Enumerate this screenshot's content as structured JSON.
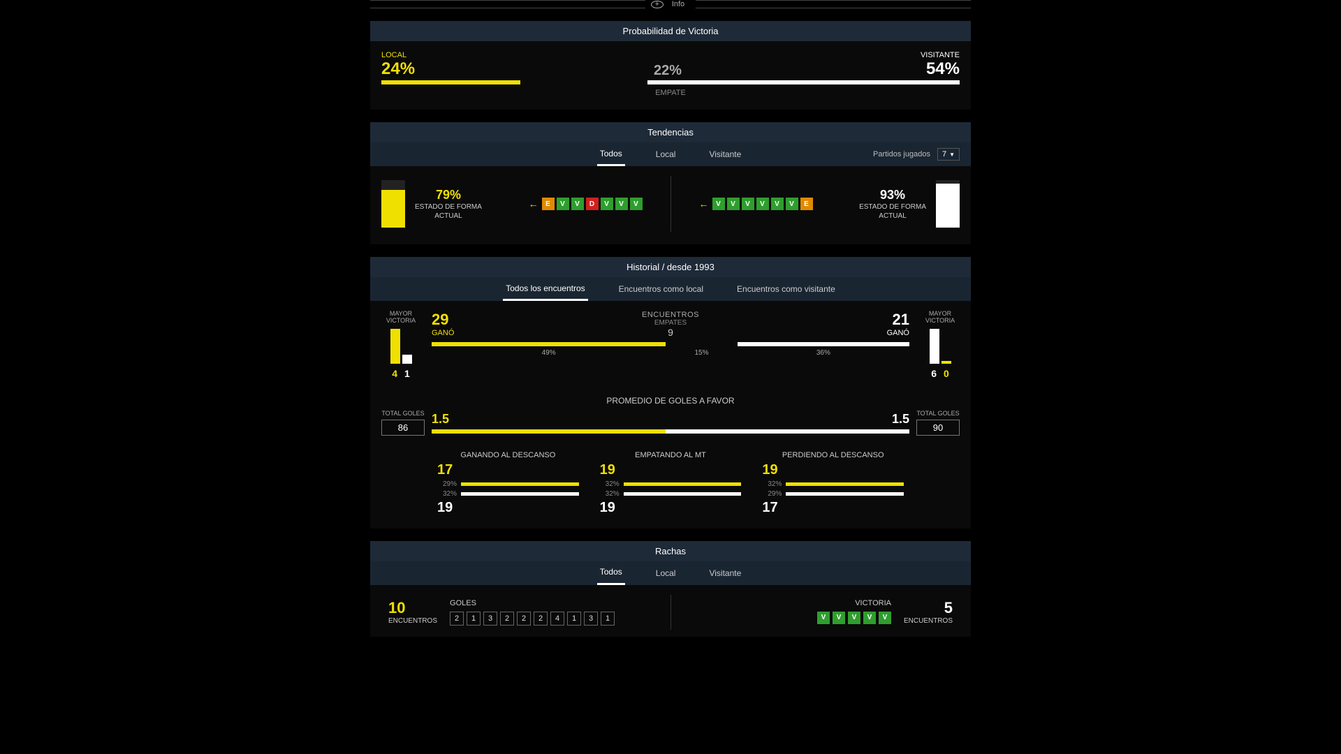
{
  "colors": {
    "accent_yellow": "#f0e000",
    "accent_white": "#ffffff",
    "win": "#2e9e2e",
    "draw": "#e08a00",
    "loss": "#d02020",
    "header_bg": "#1e2a38",
    "tabs_bg": "#1a2532"
  },
  "info_label": "Info",
  "winprob": {
    "title": "Probabilidad de Victoria",
    "local_label": "LOCAL",
    "visit_label": "VISITANTE",
    "draw_label": "EMPATE",
    "local_pct": "24%",
    "draw_pct": "22%",
    "visit_pct": "54%",
    "local_val": 24,
    "draw_val": 22,
    "visit_val": 54
  },
  "tend": {
    "title": "Tendencias",
    "tabs": [
      "Todos",
      "Local",
      "Visitante"
    ],
    "active_tab": 0,
    "games_label": "Partidos jugados",
    "games_value": "7",
    "left": {
      "pct": "79%",
      "pct_val": 79,
      "sub1": "ESTADO DE FORMA",
      "sub2": "ACTUAL",
      "streak": [
        "E",
        "V",
        "V",
        "D",
        "V",
        "V",
        "V"
      ]
    },
    "right": {
      "pct": "93%",
      "pct_val": 93,
      "sub1": "ESTADO DE FORMA",
      "sub2": "ACTUAL",
      "streak": [
        "V",
        "V",
        "V",
        "V",
        "V",
        "V",
        "E"
      ]
    }
  },
  "hist": {
    "title": "Historial / desde 1993",
    "tabs": [
      "Todos los encuentros",
      "Encuentros como local",
      "Encuentros como visitante"
    ],
    "active_tab": 0,
    "mayor_label": "MAYOR VICTORIA",
    "mayor_left": {
      "a": 4,
      "b": 1
    },
    "mayor_right": {
      "a": 6,
      "b": 0
    },
    "enc_label": "ENCUENTROS",
    "draws_label": "EMPATES",
    "draws_val": "9",
    "left_wins": "29",
    "right_wins": "21",
    "won_label": "GANÓ",
    "left_pct": "49",
    "draw_pct": "15",
    "right_pct": "36",
    "left_pct_v": 49,
    "draw_pct_v": 15,
    "right_pct_v": 36,
    "goals_title": "PROMEDIO DE GOLES A FAVOR",
    "total_goles_label": "TOTAL GOLES",
    "left_avg": "1.5",
    "right_avg": "1.5",
    "left_total": "86",
    "right_total": "90",
    "goals_bar_left_pct": 49,
    "ht": [
      {
        "title": "GANANDO AL DESCANSO",
        "y_val": "17",
        "y_pct": "29%",
        "y_pctv": 29,
        "w_pct": "32%",
        "w_pctv": 32,
        "w_val": "19"
      },
      {
        "title": "EMPATANDO AL MT",
        "y_val": "19",
        "y_pct": "32%",
        "y_pctv": 32,
        "w_pct": "32%",
        "w_pctv": 32,
        "w_val": "19"
      },
      {
        "title": "PERDIENDO AL DESCANSO",
        "y_val": "19",
        "y_pct": "32%",
        "y_pctv": 32,
        "w_pct": "29%",
        "w_pctv": 29,
        "w_val": "17"
      }
    ]
  },
  "rachas": {
    "title": "Rachas",
    "tabs": [
      "Todos",
      "Local",
      "Visitante"
    ],
    "active_tab": 0,
    "left_count": "10",
    "enc_label": "ENCUENTROS",
    "goles_label": "GOLES",
    "goles": [
      "2",
      "1",
      "3",
      "2",
      "2",
      "2",
      "4",
      "1",
      "3",
      "1"
    ],
    "victoria_label": "VICTORIA",
    "right_count": "5",
    "right_boxes": [
      "V",
      "V",
      "V",
      "V",
      "V"
    ]
  }
}
